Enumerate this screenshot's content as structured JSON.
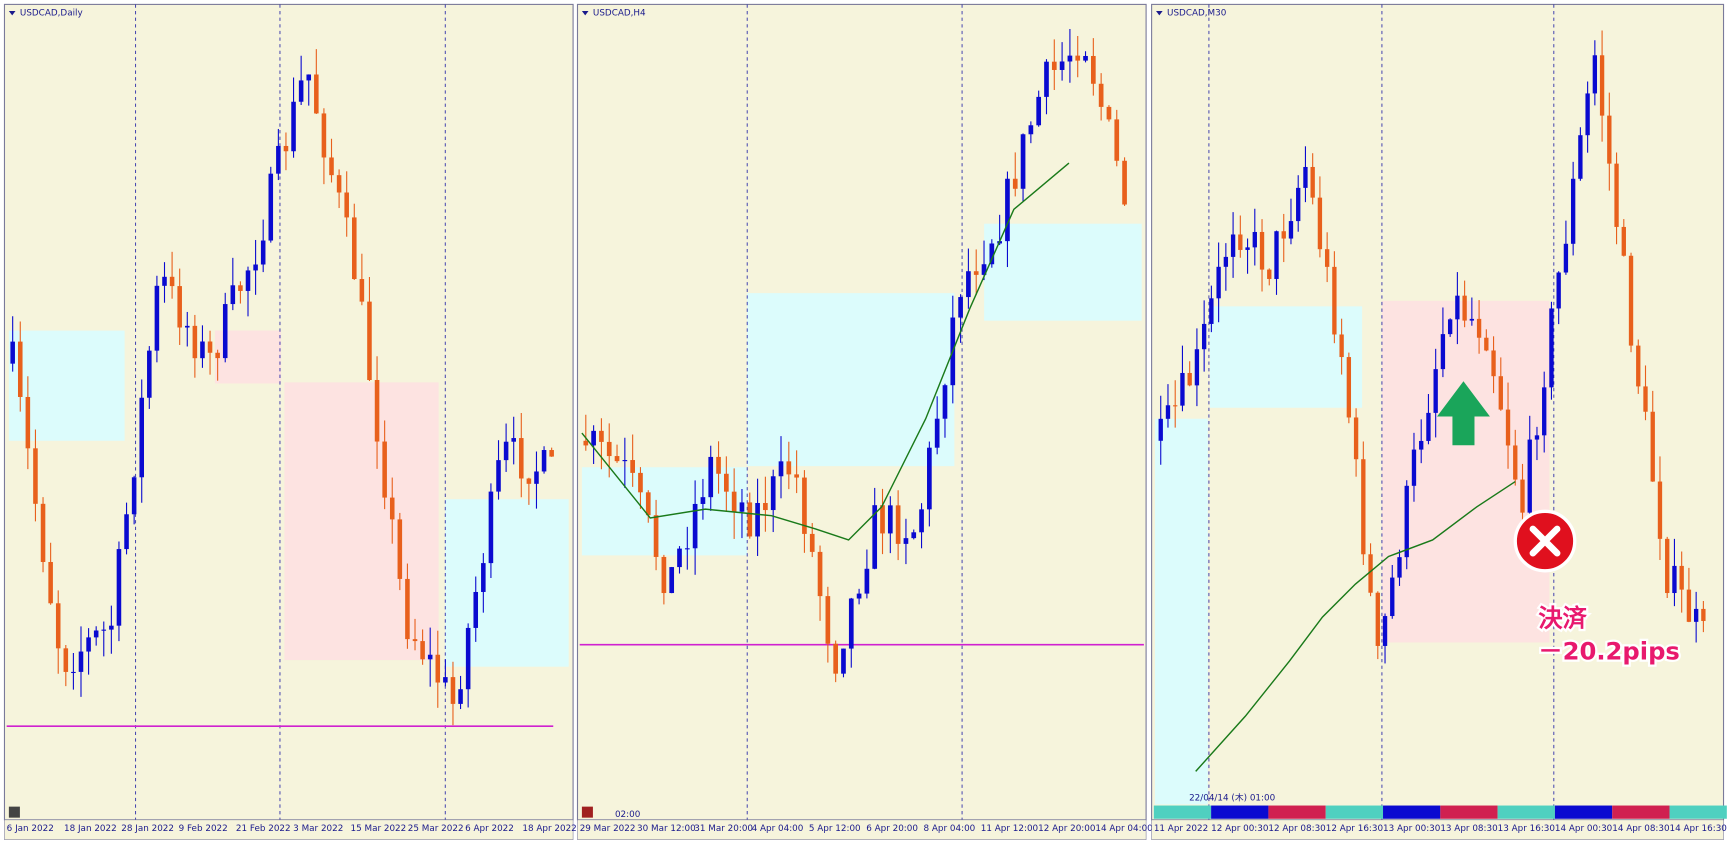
{
  "panels": [
    {
      "title": "USDCAD,Daily",
      "x_labels": [
        "6 Jan 2022",
        "18 Jan 2022",
        "28 Jan 2022",
        "9 Feb 2022",
        "21 Feb 2022",
        "3 Mar 2022",
        "15 Mar 2022",
        "25 Mar 2022",
        "6 Apr 2022",
        "18 Apr 2022"
      ]
    },
    {
      "title": "USDCAD,H4",
      "x_labels": [
        "29 Mar 2022",
        "30 Mar 12:00",
        "31 Mar 20:00",
        "4 Apr 04:00",
        "5 Apr 12:00",
        "6 Apr 20:00",
        "8 Apr 04:00",
        "11 Apr 12:00",
        "12 Apr 20:00",
        "14 Apr 04:00"
      ],
      "status": "02:00"
    },
    {
      "title": "USDCAD,M30",
      "x_labels": [
        "11 Apr 2022",
        "12 Apr 00:30",
        "12 Apr 08:30",
        "12 Apr 16:30",
        "13 Apr 00:30",
        "13 Apr 08:30",
        "13 Apr 16:30",
        "14 Apr 00:30",
        "14 Apr 08:30",
        "14 Apr 16:30"
      ],
      "status": "22/04/14 (木) 01:00"
    }
  ],
  "annotation": {
    "line1": "決済",
    "line2": "－20.2pips"
  }
}
